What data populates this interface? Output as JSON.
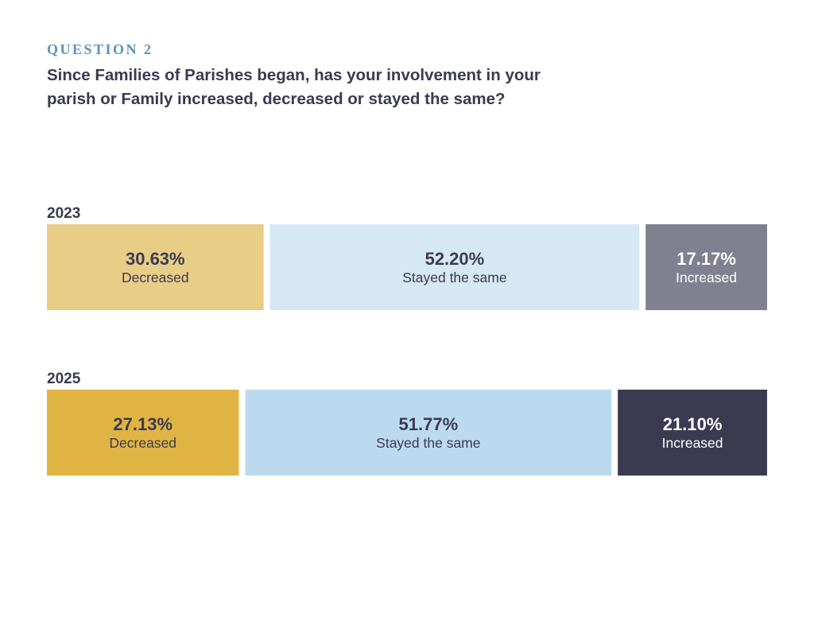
{
  "header": {
    "eyebrow": "QUESTION 2",
    "question": "Since Families of Parishes began, has your involvement in your parish or Family increased, decreased or stayed the same?"
  },
  "chart_data": {
    "type": "bar",
    "stacked": true,
    "orientation": "horizontal",
    "categories": [
      "2023",
      "2025"
    ],
    "series": [
      {
        "name": "Decreased",
        "values": [
          30.63,
          27.13
        ],
        "labels": [
          "30.63%",
          "27.13%"
        ],
        "colors": [
          "#e8cd87",
          "#e0b444"
        ],
        "text_colors": [
          "#3a3a4f",
          "#3a3a4f"
        ]
      },
      {
        "name": "Stayed the same",
        "values": [
          52.2,
          51.77
        ],
        "labels": [
          "52.20%",
          "51.77%"
        ],
        "colors": [
          "#d6e7f5",
          "#bcdaef"
        ],
        "text_colors": [
          "#3a3a4f",
          "#3a3a4f"
        ]
      },
      {
        "name": "Increased",
        "values": [
          17.17,
          21.1
        ],
        "labels": [
          "17.17%",
          "21.10%"
        ],
        "colors": [
          "#818090",
          "#3a3a50"
        ],
        "text_colors": [
          "#ffffff",
          "#ffffff"
        ]
      }
    ]
  }
}
